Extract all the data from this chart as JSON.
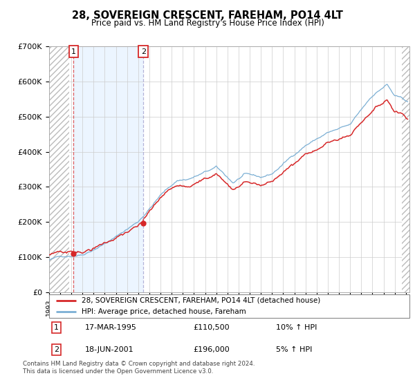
{
  "title": "28, SOVEREIGN CRESCENT, FAREHAM, PO14 4LT",
  "subtitle": "Price paid vs. HM Land Registry's House Price Index (HPI)",
  "legend_line1": "28, SOVEREIGN CRESCENT, FAREHAM, PO14 4LT (detached house)",
  "legend_line2": "HPI: Average price, detached house, Fareham",
  "sale1_date": "17-MAR-1995",
  "sale1_price": "£110,500",
  "sale1_hpi": "10% ↑ HPI",
  "sale2_date": "18-JUN-2001",
  "sale2_price": "£196,000",
  "sale2_hpi": "5% ↑ HPI",
  "footer": "Contains HM Land Registry data © Crown copyright and database right 2024.\nThis data is licensed under the Open Government Licence v3.0.",
  "hpi_color": "#7bafd4",
  "price_color": "#d62728",
  "shaded_fill_color": "#ddeeff",
  "ylim": [
    0,
    700000
  ],
  "yticks": [
    0,
    100000,
    200000,
    300000,
    400000,
    500000,
    600000,
    700000
  ],
  "ytick_labels": [
    "£0",
    "£100K",
    "£200K",
    "£300K",
    "£400K",
    "£500K",
    "£600K",
    "£700K"
  ],
  "sale1_x": 1995.21,
  "sale1_y": 110500,
  "sale2_x": 2001.46,
  "sale2_y": 196000,
  "xmin": 1993.0,
  "xmax": 2025.3,
  "hatch_left_end": 1994.83,
  "hatch_right_start": 2024.67
}
